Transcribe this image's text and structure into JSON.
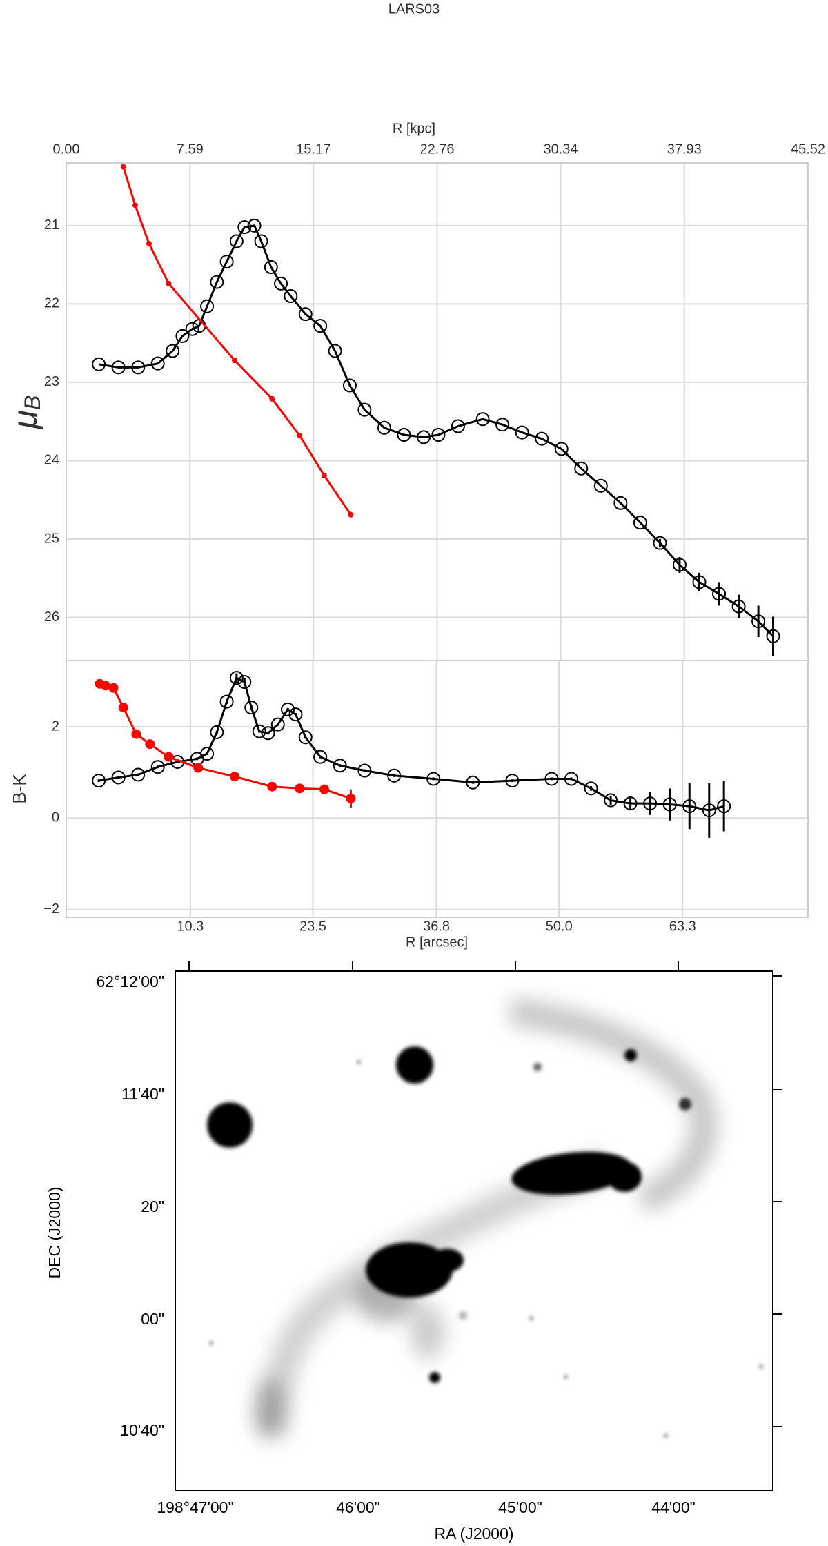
{
  "chart_data": [
    {
      "type": "line",
      "title": "LARS03",
      "x2label": "R [kpc]",
      "x2lim": [
        0,
        45.52
      ],
      "x2ticks": [
        {
          "value": 0,
          "label": "0.00"
        },
        7.59,
        15.17,
        22.76,
        30.34,
        37.93,
        45.52
      ],
      "xlim": [
        -3.06,
        76.8
      ],
      "ylim": [
        26.55,
        20.2
      ],
      "yticks": [
        21,
        22,
        23,
        24,
        25,
        26
      ],
      "ylabel": [
        "μ",
        "B"
      ],
      "grid": true,
      "series": [
        {
          "color": "#000000",
          "marker": "open",
          "marker_size": 9,
          "x": [
            0.44,
            2.56,
            4.68,
            6.8,
            8.39,
            9.45,
            10.51,
            11.25,
            12.1,
            13.16,
            14.22,
            15.28,
            16.13,
            17.19,
            17.93,
            18.99,
            20.05,
            21.11,
            22.7,
            24.29,
            25.88,
            27.47,
            29.06,
            31.18,
            33.3,
            35.42,
            37.01,
            39.13,
            41.78,
            43.9,
            46.02,
            48.14,
            50.26,
            52.38,
            54.5,
            56.62,
            58.74,
            60.86,
            62.98,
            65.1,
            67.22,
            69.34,
            71.46,
            73.05
          ],
          "values": [
            22.77,
            22.81,
            22.81,
            22.76,
            22.6,
            22.41,
            22.32,
            22.28,
            22.03,
            21.72,
            21.46,
            21.2,
            21.02,
            21.0,
            21.2,
            21.53,
            21.74,
            21.9,
            22.13,
            22.28,
            22.6,
            23.04,
            23.35,
            23.58,
            23.67,
            23.7,
            23.67,
            23.56,
            23.47,
            23.54,
            23.64,
            23.72,
            23.85,
            24.1,
            24.32,
            24.54,
            24.79,
            25.05,
            25.33,
            25.55,
            25.7,
            25.86,
            26.05,
            26.24
          ],
          "errors": [
            0,
            0,
            0,
            0,
            0,
            0,
            0,
            0,
            0,
            0,
            0,
            0,
            0,
            0,
            0,
            0,
            0,
            0,
            0,
            0,
            0,
            0,
            0,
            0,
            0,
            0,
            0,
            0,
            0,
            0,
            0,
            0,
            0,
            0,
            0,
            0,
            0,
            0.05,
            0.1,
            0.12,
            0.15,
            0.15,
            0.2,
            0.25
          ]
        },
        {
          "color": "#ff0000",
          "marker": "filled",
          "marker_size": 4,
          "x": [
            3.09,
            4.36,
            5.85,
            7.97,
            15.07,
            19.1,
            22.07,
            24.72,
            27.58
          ],
          "values": [
            20.25,
            20.74,
            21.23,
            21.74,
            22.72,
            23.21,
            23.68,
            24.19,
            24.69
          ]
        }
      ]
    },
    {
      "type": "line",
      "xlim": [
        -3.06,
        76.8
      ],
      "xticks": [
        10.3,
        23.5,
        36.8,
        {
          "value": 50,
          "label": "50.0"
        },
        63.3
      ],
      "xlabel": "R [arcsec]",
      "ylim": [
        -2.17,
        3.45
      ],
      "yticks": [
        {
          "value": -2,
          "label": "−2"
        },
        0,
        2
      ],
      "ylabel": "B-K",
      "grid": true,
      "series": [
        {
          "color": "#000000",
          "marker": "open",
          "marker_size": 9,
          "x": [
            0.44,
            2.56,
            4.68,
            6.8,
            8.92,
            11.04,
            12.1,
            13.16,
            14.22,
            15.28,
            16.13,
            16.87,
            17.72,
            18.67,
            19.73,
            20.79,
            21.64,
            22.7,
            24.29,
            26.41,
            29.06,
            32.24,
            36.48,
            40.72,
            44.96,
            49.2,
            51.32,
            53.44,
            55.56,
            57.68,
            59.8,
            61.92,
            64.04,
            66.16,
            67.75
          ],
          "values": [
            0.82,
            0.89,
            0.95,
            1.12,
            1.23,
            1.3,
            1.41,
            1.88,
            2.55,
            3.07,
            2.98,
            2.42,
            1.9,
            1.86,
            2.05,
            2.38,
            2.27,
            1.77,
            1.34,
            1.15,
            1.04,
            0.93,
            0.86,
            0.78,
            0.82,
            0.86,
            0.86,
            0.65,
            0.39,
            0.32,
            0.32,
            0.3,
            0.26,
            0.17,
            0.26
          ],
          "errors": [
            0.03,
            0.03,
            0.03,
            0.03,
            0.03,
            0.03,
            0.03,
            0.03,
            0.05,
            0.1,
            0.08,
            0.05,
            0.03,
            0.03,
            0.03,
            0.03,
            0.03,
            0.03,
            0.03,
            0.03,
            0.03,
            0.03,
            0.03,
            0.03,
            0.03,
            0.03,
            0.03,
            0.05,
            0.1,
            0.15,
            0.25,
            0.35,
            0.5,
            0.6,
            0.55
          ]
        },
        {
          "color": "#ff0000",
          "marker": "filled",
          "marker_size": 7,
          "x": [
            0.55,
            1.18,
            2.03,
            3.09,
            4.47,
            5.95,
            7.97,
            11.15,
            15.07,
            19.1,
            22.07,
            24.72,
            27.58
          ],
          "values": [
            2.94,
            2.9,
            2.85,
            2.42,
            1.84,
            1.62,
            1.34,
            1.1,
            0.91,
            0.69,
            0.65,
            0.63,
            0.43
          ],
          "errors": [
            0.03,
            0.03,
            0.03,
            0.03,
            0.03,
            0.03,
            0.03,
            0.03,
            0.03,
            0.03,
            0.03,
            0.03,
            0.2
          ]
        }
      ]
    }
  ],
  "image": {
    "xlabel": "RA (J2000)",
    "ylabel": "DEC (J2000)",
    "xticks": [
      "198°47'00\"",
      "46'00\"",
      "45'00\"",
      "44'00\""
    ],
    "yticks": [
      "62°12'00\"",
      "11'40\"",
      "20\"",
      "00\"",
      "10'40\""
    ]
  }
}
